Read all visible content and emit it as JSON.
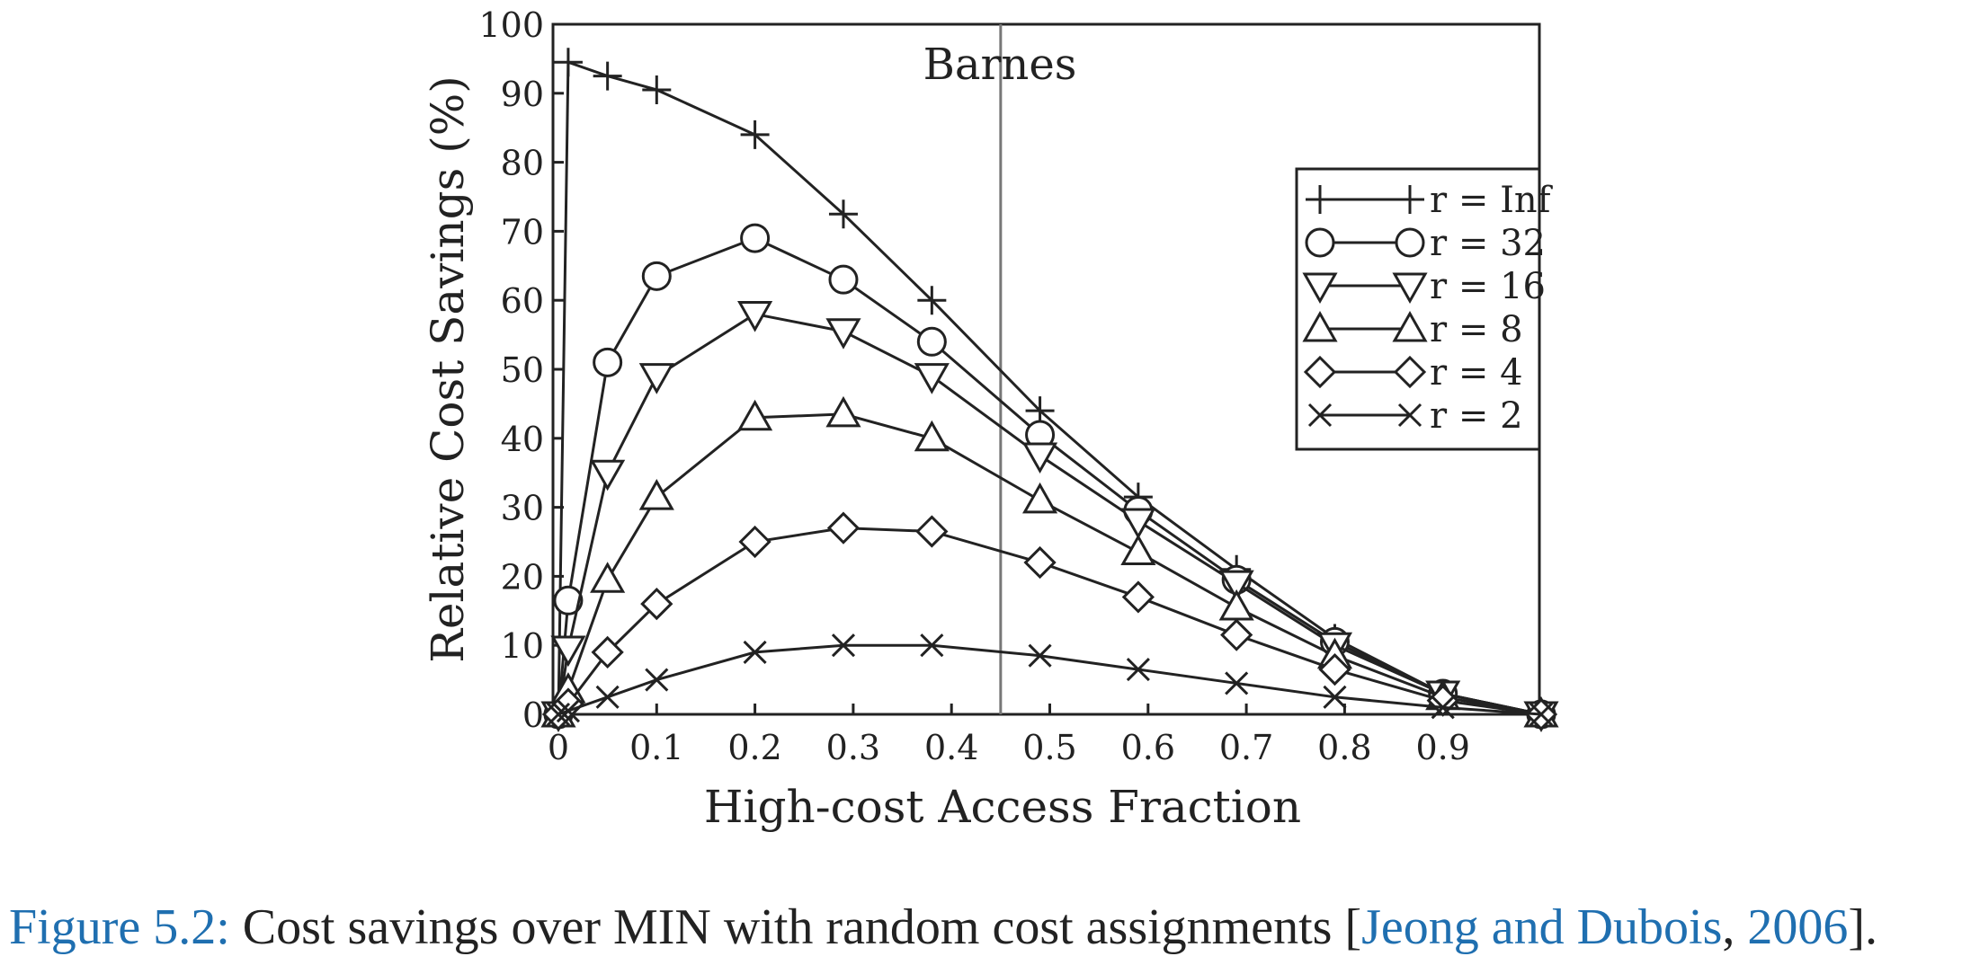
{
  "chart_data": {
    "type": "line",
    "title": "Barnes",
    "xlabel": "High-cost Access Fraction",
    "ylabel": "Relative Cost Savings (%)",
    "xlim": [
      0,
      1.0
    ],
    "ylim": [
      0,
      100
    ],
    "xticks": [
      "0",
      "0.1",
      "0.2",
      "0.3",
      "0.4",
      "0.5",
      "0.6",
      "0.7",
      "0.8",
      "0.9"
    ],
    "yticks": [
      "0",
      "10",
      "20",
      "30",
      "40",
      "50",
      "60",
      "70",
      "80",
      "90",
      "100"
    ],
    "vertical_reference_line_x": 0.45,
    "legend_position": "right",
    "grid": false,
    "series": [
      {
        "name": "r = Inf",
        "marker": "plus",
        "x": [
          0,
          0.01,
          0.05,
          0.1,
          0.2,
          0.29,
          0.38,
          0.49,
          0.59,
          0.69,
          0.79,
          0.9,
          1.0
        ],
        "y": [
          0,
          94.5,
          92.5,
          90.5,
          84,
          72.5,
          60,
          44,
          31.5,
          21,
          11,
          3,
          0
        ]
      },
      {
        "name": "r = 32",
        "marker": "circle",
        "x": [
          0,
          0.01,
          0.05,
          0.1,
          0.2,
          0.29,
          0.38,
          0.49,
          0.59,
          0.69,
          0.79,
          0.9,
          1.0
        ],
        "y": [
          0,
          16.5,
          51,
          63.5,
          69,
          63,
          54,
          40.5,
          29.5,
          19.5,
          10.5,
          3,
          0
        ]
      },
      {
        "name": "r = 16",
        "marker": "triangle-down",
        "x": [
          0,
          0.01,
          0.05,
          0.1,
          0.2,
          0.29,
          0.38,
          0.49,
          0.59,
          0.69,
          0.79,
          0.9,
          1.0
        ],
        "y": [
          0,
          9.5,
          35,
          49,
          58,
          55.5,
          49,
          37.5,
          28,
          19,
          10,
          3,
          0
        ]
      },
      {
        "name": "r = 8",
        "marker": "triangle-up",
        "x": [
          0,
          0.01,
          0.05,
          0.1,
          0.2,
          0.29,
          0.38,
          0.49,
          0.59,
          0.69,
          0.79,
          0.9,
          1.0
        ],
        "y": [
          0,
          3.5,
          19.5,
          31.5,
          43,
          43.5,
          40,
          31,
          23.5,
          15.5,
          8.5,
          2.5,
          0
        ]
      },
      {
        "name": "r = 4",
        "marker": "diamond",
        "x": [
          0,
          0.01,
          0.05,
          0.1,
          0.2,
          0.29,
          0.38,
          0.49,
          0.59,
          0.69,
          0.79,
          0.9,
          1.0
        ],
        "y": [
          0,
          1.5,
          9,
          16,
          25,
          27,
          26.5,
          22,
          17,
          11.5,
          6.5,
          2,
          0
        ]
      },
      {
        "name": "r = 2",
        "marker": "cross",
        "x": [
          0,
          0.01,
          0.05,
          0.1,
          0.2,
          0.29,
          0.38,
          0.49,
          0.59,
          0.69,
          0.79,
          0.9,
          1.0
        ],
        "y": [
          0,
          0.5,
          2.5,
          5,
          9,
          10,
          10,
          8.5,
          6.5,
          4.5,
          2.5,
          1,
          0
        ]
      }
    ]
  },
  "caption": {
    "label": "Figure 5.2:",
    "text": " Cost savings over MIN with random cost assignments [",
    "citation": "Jeong and Dubois",
    "sep": ", ",
    "year": "2006",
    "end": "]."
  }
}
